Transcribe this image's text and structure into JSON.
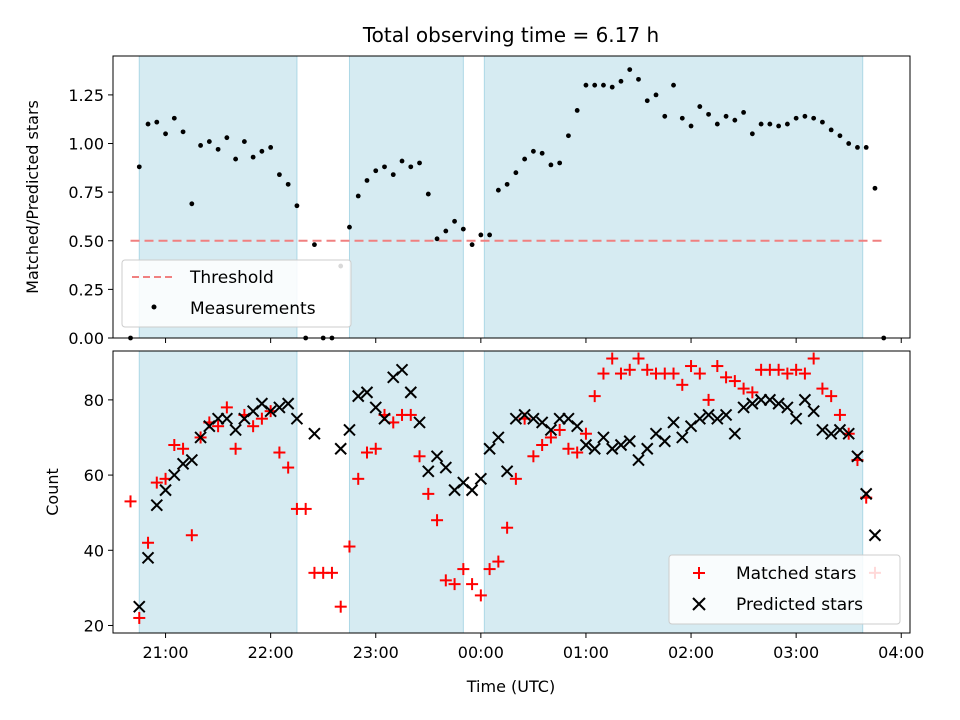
{
  "chart_data": [
    {
      "type": "scatter",
      "title": "Total observing time = 6.17 h",
      "ylabel": "Matched/Predicted stars",
      "xlim": [
        "20:30",
        "04:05"
      ],
      "ylim": [
        0,
        1.45
      ],
      "yticks": [
        "0.00",
        "0.25",
        "0.50",
        "0.75",
        "1.00",
        "1.25"
      ],
      "legend": [
        "Threshold",
        "Measurements"
      ],
      "legend_position": "lower-left",
      "observing_windows": [
        [
          "20:45",
          "22:15"
        ],
        [
          "22:45",
          "23:50"
        ],
        [
          "00:02",
          "03:38"
        ]
      ],
      "threshold": {
        "name": "Threshold",
        "value": 0.5,
        "color": "#f08080"
      },
      "series": [
        {
          "name": "Measurements",
          "color": "#000000",
          "marker": "dot",
          "points": [
            [
              "20:40",
              0.0
            ],
            [
              "20:45",
              0.88
            ],
            [
              "20:50",
              1.1
            ],
            [
              "20:55",
              1.11
            ],
            [
              "21:00",
              1.05
            ],
            [
              "21:05",
              1.13
            ],
            [
              "21:10",
              1.06
            ],
            [
              "21:15",
              0.69
            ],
            [
              "21:20",
              0.99
            ],
            [
              "21:25",
              1.01
            ],
            [
              "21:30",
              0.97
            ],
            [
              "21:35",
              1.03
            ],
            [
              "21:40",
              0.92
            ],
            [
              "21:45",
              1.01
            ],
            [
              "21:50",
              0.93
            ],
            [
              "21:55",
              0.96
            ],
            [
              "22:00",
              0.98
            ],
            [
              "22:05",
              0.84
            ],
            [
              "22:10",
              0.79
            ],
            [
              "22:15",
              0.68
            ],
            [
              "22:20",
              0.0
            ],
            [
              "22:25",
              0.48
            ],
            [
              "22:30",
              0.0
            ],
            [
              "22:35",
              0.0
            ],
            [
              "22:40",
              0.37
            ],
            [
              "22:45",
              0.57
            ],
            [
              "22:50",
              0.73
            ],
            [
              "22:55",
              0.81
            ],
            [
              "23:00",
              0.86
            ],
            [
              "23:05",
              0.88
            ],
            [
              "23:10",
              0.84
            ],
            [
              "23:15",
              0.91
            ],
            [
              "23:20",
              0.88
            ],
            [
              "23:25",
              0.9
            ],
            [
              "23:30",
              0.74
            ],
            [
              "23:35",
              0.51
            ],
            [
              "23:40",
              0.55
            ],
            [
              "23:45",
              0.6
            ],
            [
              "23:50",
              0.56
            ],
            [
              "23:55",
              0.48
            ],
            [
              "00:00",
              0.53
            ],
            [
              "00:05",
              0.53
            ],
            [
              "00:10",
              0.76
            ],
            [
              "00:15",
              0.79
            ],
            [
              "00:20",
              0.85
            ],
            [
              "00:25",
              0.92
            ],
            [
              "00:30",
              0.96
            ],
            [
              "00:35",
              0.95
            ],
            [
              "00:40",
              0.89
            ],
            [
              "00:45",
              0.9
            ],
            [
              "00:50",
              1.04
            ],
            [
              "00:55",
              1.17
            ],
            [
              "01:00",
              1.3
            ],
            [
              "01:05",
              1.3
            ],
            [
              "01:10",
              1.3
            ],
            [
              "01:15",
              1.29
            ],
            [
              "01:20",
              1.32
            ],
            [
              "01:25",
              1.38
            ],
            [
              "01:30",
              1.33
            ],
            [
              "01:35",
              1.22
            ],
            [
              "01:40",
              1.25
            ],
            [
              "01:45",
              1.14
            ],
            [
              "01:50",
              1.3
            ],
            [
              "01:55",
              1.13
            ],
            [
              "02:00",
              1.09
            ],
            [
              "02:05",
              1.19
            ],
            [
              "02:10",
              1.15
            ],
            [
              "02:15",
              1.1
            ],
            [
              "02:20",
              1.14
            ],
            [
              "02:25",
              1.12
            ],
            [
              "02:30",
              1.16
            ],
            [
              "02:35",
              1.05
            ],
            [
              "02:40",
              1.1
            ],
            [
              "02:45",
              1.1
            ],
            [
              "02:50",
              1.09
            ],
            [
              "02:55",
              1.1
            ],
            [
              "03:00",
              1.13
            ],
            [
              "03:05",
              1.14
            ],
            [
              "03:10",
              1.13
            ],
            [
              "03:15",
              1.11
            ],
            [
              "03:20",
              1.07
            ],
            [
              "03:25",
              1.04
            ],
            [
              "03:30",
              1.0
            ],
            [
              "03:35",
              0.98
            ],
            [
              "03:40",
              0.98
            ],
            [
              "03:45",
              0.77
            ],
            [
              "03:50",
              0.0
            ]
          ]
        }
      ]
    },
    {
      "type": "scatter",
      "xlabel": "Time (UTC)",
      "ylabel": "Count",
      "xlim": [
        "20:30",
        "04:05"
      ],
      "ylim": [
        18,
        93
      ],
      "xticks": [
        "21:00",
        "22:00",
        "23:00",
        "00:00",
        "01:00",
        "02:00",
        "03:00",
        "04:00"
      ],
      "yticks": [
        "20",
        "40",
        "60",
        "80"
      ],
      "legend": [
        "Matched stars",
        "Predicted stars"
      ],
      "legend_position": "lower-right",
      "observing_windows": [
        [
          "20:45",
          "22:15"
        ],
        [
          "22:45",
          "23:50"
        ],
        [
          "00:02",
          "03:38"
        ]
      ],
      "series": [
        {
          "name": "Matched stars",
          "color": "#ff0000",
          "marker": "plus",
          "points": [
            [
              "20:40",
              53
            ],
            [
              "20:45",
              22
            ],
            [
              "20:50",
              42
            ],
            [
              "20:55",
              58
            ],
            [
              "21:00",
              59
            ],
            [
              "21:05",
              68
            ],
            [
              "21:10",
              67
            ],
            [
              "21:15",
              44
            ],
            [
              "21:20",
              70
            ],
            [
              "21:25",
              74
            ],
            [
              "21:30",
              73
            ],
            [
              "21:35",
              78
            ],
            [
              "21:40",
              67
            ],
            [
              "21:45",
              76
            ],
            [
              "21:50",
              73
            ],
            [
              "21:55",
              75
            ],
            [
              "22:00",
              77
            ],
            [
              "22:05",
              66
            ],
            [
              "22:10",
              62
            ],
            [
              "22:15",
              51
            ],
            [
              "22:20",
              51
            ],
            [
              "22:25",
              34
            ],
            [
              "22:30",
              34
            ],
            [
              "22:35",
              34
            ],
            [
              "22:40",
              25
            ],
            [
              "22:45",
              41
            ],
            [
              "22:50",
              59
            ],
            [
              "22:55",
              66
            ],
            [
              "23:00",
              67
            ],
            [
              "23:05",
              76
            ],
            [
              "23:10",
              74
            ],
            [
              "23:15",
              76
            ],
            [
              "23:20",
              76
            ],
            [
              "23:25",
              65
            ],
            [
              "23:30",
              55
            ],
            [
              "23:35",
              48
            ],
            [
              "23:40",
              32
            ],
            [
              "23:45",
              31
            ],
            [
              "23:50",
              35
            ],
            [
              "23:55",
              31
            ],
            [
              "00:00",
              28
            ],
            [
              "00:05",
              35
            ],
            [
              "00:10",
              37
            ],
            [
              "00:15",
              46
            ],
            [
              "00:20",
              59
            ],
            [
              "00:25",
              75
            ],
            [
              "00:30",
              65
            ],
            [
              "00:35",
              68
            ],
            [
              "00:40",
              70
            ],
            [
              "00:45",
              72
            ],
            [
              "00:50",
              67
            ],
            [
              "00:55",
              66
            ],
            [
              "01:00",
              71
            ],
            [
              "01:05",
              81
            ],
            [
              "01:10",
              87
            ],
            [
              "01:15",
              91
            ],
            [
              "01:20",
              87
            ],
            [
              "01:25",
              88
            ],
            [
              "01:30",
              91
            ],
            [
              "01:35",
              88
            ],
            [
              "01:40",
              87
            ],
            [
              "01:45",
              87
            ],
            [
              "01:50",
              87
            ],
            [
              "01:55",
              84
            ],
            [
              "02:00",
              89
            ],
            [
              "02:05",
              87
            ],
            [
              "02:10",
              80
            ],
            [
              "02:15",
              89
            ],
            [
              "02:20",
              86
            ],
            [
              "02:25",
              85
            ],
            [
              "02:30",
              83
            ],
            [
              "02:35",
              82
            ],
            [
              "02:40",
              88
            ],
            [
              "02:45",
              88
            ],
            [
              "02:50",
              88
            ],
            [
              "02:55",
              87
            ],
            [
              "03:00",
              88
            ],
            [
              "03:05",
              87
            ],
            [
              "03:10",
              91
            ],
            [
              "03:15",
              83
            ],
            [
              "03:20",
              81
            ],
            [
              "03:25",
              76
            ],
            [
              "03:30",
              71
            ],
            [
              "03:35",
              64
            ],
            [
              "03:40",
              54
            ],
            [
              "03:45",
              34
            ]
          ]
        },
        {
          "name": "Predicted stars",
          "color": "#000000",
          "marker": "x",
          "points": [
            [
              "20:45",
              25
            ],
            [
              "20:50",
              38
            ],
            [
              "20:55",
              52
            ],
            [
              "21:00",
              56
            ],
            [
              "21:05",
              60
            ],
            [
              "21:10",
              63
            ],
            [
              "21:15",
              64
            ],
            [
              "21:20",
              70
            ],
            [
              "21:25",
              73
            ],
            [
              "21:30",
              75
            ],
            [
              "21:35",
              75
            ],
            [
              "21:40",
              72
            ],
            [
              "21:45",
              75
            ],
            [
              "21:50",
              77
            ],
            [
              "21:55",
              79
            ],
            [
              "22:00",
              77
            ],
            [
              "22:05",
              78
            ],
            [
              "22:10",
              79
            ],
            [
              "22:15",
              75
            ],
            [
              "22:25",
              71
            ],
            [
              "22:40",
              67
            ],
            [
              "22:45",
              72
            ],
            [
              "22:50",
              81
            ],
            [
              "22:55",
              82
            ],
            [
              "23:00",
              78
            ],
            [
              "23:05",
              75
            ],
            [
              "23:10",
              86
            ],
            [
              "23:15",
              88
            ],
            [
              "23:20",
              82
            ],
            [
              "23:25",
              74
            ],
            [
              "23:30",
              61
            ],
            [
              "23:35",
              65
            ],
            [
              "23:40",
              62
            ],
            [
              "23:45",
              56
            ],
            [
              "23:50",
              58
            ],
            [
              "23:55",
              56
            ],
            [
              "00:00",
              59
            ],
            [
              "00:05",
              67
            ],
            [
              "00:10",
              70
            ],
            [
              "00:15",
              61
            ],
            [
              "00:20",
              75
            ],
            [
              "00:25",
              76
            ],
            [
              "00:30",
              75
            ],
            [
              "00:35",
              74
            ],
            [
              "00:40",
              72
            ],
            [
              "00:45",
              75
            ],
            [
              "00:50",
              75
            ],
            [
              "00:55",
              73
            ],
            [
              "01:00",
              68
            ],
            [
              "01:05",
              67
            ],
            [
              "01:10",
              70
            ],
            [
              "01:15",
              67
            ],
            [
              "01:20",
              68
            ],
            [
              "01:25",
              69
            ],
            [
              "01:30",
              64
            ],
            [
              "01:35",
              67
            ],
            [
              "01:40",
              71
            ],
            [
              "01:45",
              69
            ],
            [
              "01:50",
              74
            ],
            [
              "01:55",
              70
            ],
            [
              "02:00",
              73
            ],
            [
              "02:05",
              75
            ],
            [
              "02:10",
              76
            ],
            [
              "02:15",
              75
            ],
            [
              "02:20",
              76
            ],
            [
              "02:25",
              71
            ],
            [
              "02:30",
              78
            ],
            [
              "02:35",
              79
            ],
            [
              "02:40",
              80
            ],
            [
              "02:45",
              80
            ],
            [
              "02:50",
              79
            ],
            [
              "02:55",
              78
            ],
            [
              "03:00",
              75
            ],
            [
              "03:05",
              80
            ],
            [
              "03:10",
              77
            ],
            [
              "03:15",
              72
            ],
            [
              "03:20",
              71
            ],
            [
              "03:25",
              72
            ],
            [
              "03:30",
              71
            ],
            [
              "03:35",
              65
            ],
            [
              "03:40",
              55
            ],
            [
              "03:45",
              44
            ]
          ]
        }
      ]
    }
  ]
}
